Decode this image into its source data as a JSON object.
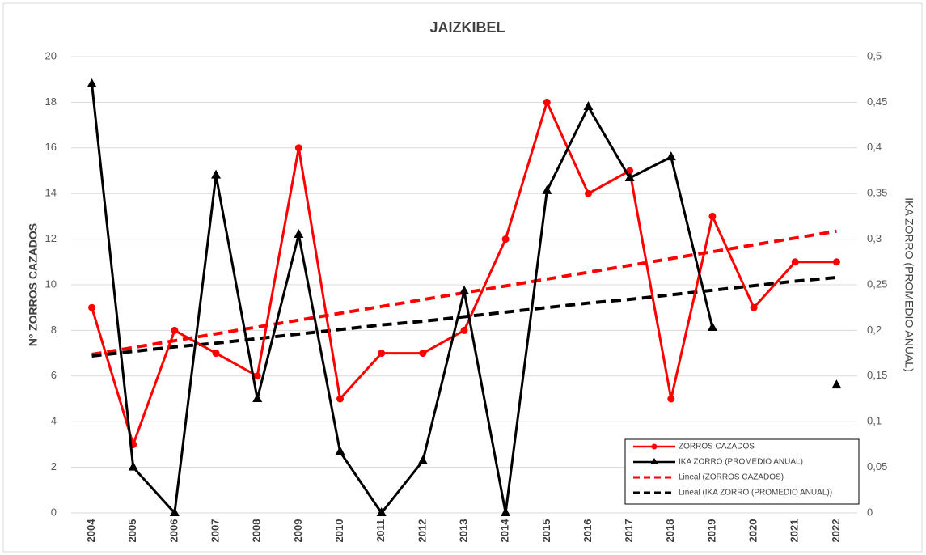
{
  "chart_data": {
    "type": "line",
    "title": "JAIZKIBEL",
    "y_label": "Nº ZORROS CAZADOS",
    "y2_label": "IKA ZORRO (PROMEDIO ANUAL)",
    "categories": [
      "2004",
      "2005",
      "2006",
      "2007",
      "2008",
      "2009",
      "2010",
      "2011",
      "2012",
      "2013",
      "2014",
      "2015",
      "2016",
      "2017",
      "2018",
      "2019",
      "2020",
      "2021",
      "2022"
    ],
    "series": [
      {
        "name": "ZORROS CAZADOS",
        "color": "#ff0000",
        "marker": "circle",
        "dash": false,
        "values": [
          9,
          3,
          8,
          7,
          6,
          16,
          5,
          7,
          7,
          8,
          12,
          18,
          14,
          15,
          5,
          13,
          9,
          11,
          11
        ]
      },
      {
        "name": "IKA ZORRO (PROMEDIO ANUAL)",
        "color": "#000000",
        "marker": "triangle",
        "dash": false,
        "axis": "y2",
        "values": [
          0.47,
          0.05,
          0,
          0.37,
          0.125,
          0.305,
          0.067,
          0,
          0.057,
          0.243,
          0,
          0.353,
          0.445,
          0.367,
          0.39,
          0.203,
          null,
          null,
          0.14
        ]
      },
      {
        "name": "Lineal (ZORROS CAZADOS)",
        "color": "#ff0000",
        "marker": "none",
        "dash": true,
        "values": [
          6.95,
          7.25,
          7.55,
          7.85,
          8.15,
          8.45,
          8.75,
          9.05,
          9.35,
          9.65,
          9.95,
          10.25,
          10.55,
          10.85,
          11.15,
          11.45,
          11.75,
          12.05,
          12.35
        ]
      },
      {
        "name": "Lineal (IKA ZORRO (PROMEDIO ANUAL))",
        "color": "#000000",
        "marker": "none",
        "dash": true,
        "axis": "y2",
        "values": [
          0.172,
          0.177,
          0.182,
          0.186,
          0.191,
          0.196,
          0.201,
          0.206,
          0.21,
          0.215,
          0.22,
          0.225,
          0.23,
          0.234,
          0.239,
          0.244,
          0.249,
          0.254,
          0.258
        ]
      }
    ],
    "ylim": [
      0,
      20
    ],
    "yticks": [
      0,
      2,
      4,
      6,
      8,
      10,
      12,
      14,
      16,
      18,
      20
    ],
    "y2lim": [
      0,
      0.5
    ],
    "y2ticks": [
      0,
      {
        "value": 0.05,
        "label": "0,05"
      },
      {
        "value": 0.1,
        "label": "0,1"
      },
      {
        "value": 0.15,
        "label": "0,15"
      },
      {
        "value": 0.2,
        "label": "0,2"
      },
      {
        "value": 0.25,
        "label": "0,25"
      },
      {
        "value": 0.3,
        "label": "0,3"
      },
      {
        "value": 0.35,
        "label": "0,35"
      },
      {
        "value": 0.4,
        "label": "0,4"
      },
      {
        "value": 0.45,
        "label": "0,45"
      },
      {
        "value": 0.5,
        "label": "0,5"
      }
    ],
    "grid": true,
    "legend": "lower right"
  }
}
